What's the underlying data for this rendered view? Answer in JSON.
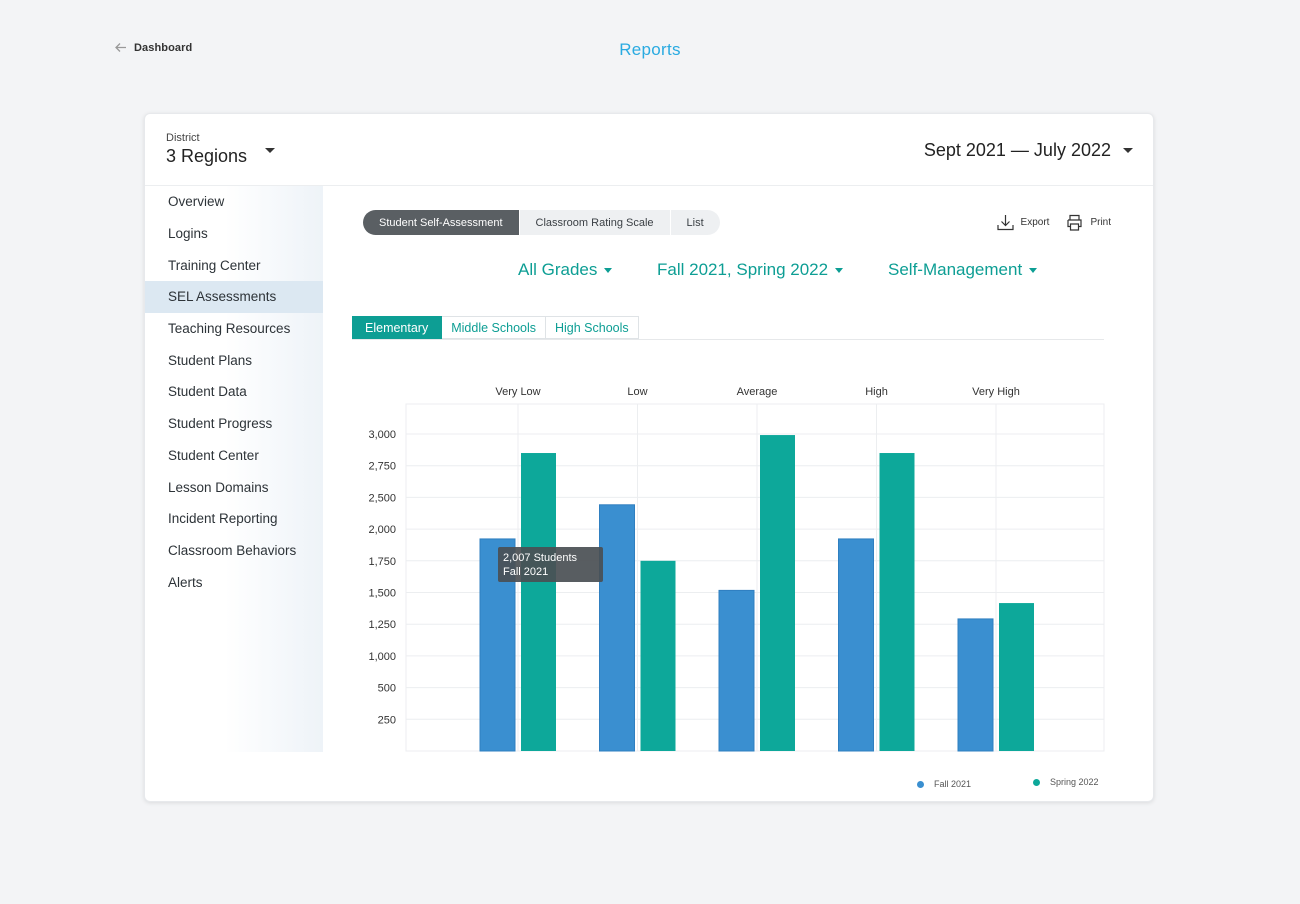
{
  "nav": {
    "back_label": "Dashboard",
    "page_title": "Reports"
  },
  "header": {
    "district_label": "District",
    "district_value": "3 Regions",
    "date_range": "Sept 2021 — July 2022"
  },
  "sidebar": {
    "items": [
      {
        "label": "Overview"
      },
      {
        "label": "Logins"
      },
      {
        "label": "Training Center"
      },
      {
        "label": "SEL Assessments",
        "active": true
      },
      {
        "label": "Teaching Resources"
      },
      {
        "label": "Student Plans"
      },
      {
        "label": "Student Data"
      },
      {
        "label": "Student Progress"
      },
      {
        "label": "Student Center"
      },
      {
        "label": "Lesson Domains"
      },
      {
        "label": "Incident Reporting"
      },
      {
        "label": "Classroom Behaviors"
      },
      {
        "label": "Alerts"
      }
    ]
  },
  "toolbar": {
    "segments": [
      "Student Self-Assessment",
      "Classroom Rating Scale",
      "List"
    ],
    "export_label": "Export",
    "print_label": "Print"
  },
  "filters": {
    "grades": "All Grades",
    "terms": "Fall 2021, Spring 2022",
    "domain": "Self-Management"
  },
  "tabs": [
    "Elementary",
    "Middle Schools",
    "High Schools"
  ],
  "colors": {
    "fall": "#3a8fd0",
    "spring": "#0da89a",
    "accent": "#0d9e94",
    "title": "#29aae1"
  },
  "chart_data": {
    "type": "bar",
    "categories": [
      "Very Low",
      "Low",
      "Average",
      "High",
      "Very High"
    ],
    "series": [
      {
        "name": "Fall 2021",
        "values": [
          2007,
          2330,
          1520,
          2007,
          1250
        ]
      },
      {
        "name": "Spring 2022",
        "values": [
          2820,
          1800,
          2990,
          2820,
          1400
        ]
      }
    ],
    "y_ticks": [
      "3,000",
      "2,750",
      "2,500",
      "2,000",
      "1,750",
      "1,500",
      "1,250",
      "1,000",
      "500",
      "250"
    ],
    "ylim": [
      0,
      3000
    ],
    "grid": true,
    "legend_placement": "bottom-right",
    "tooltip": {
      "line1": "2,007 Students",
      "line2": "Fall 2021"
    }
  }
}
